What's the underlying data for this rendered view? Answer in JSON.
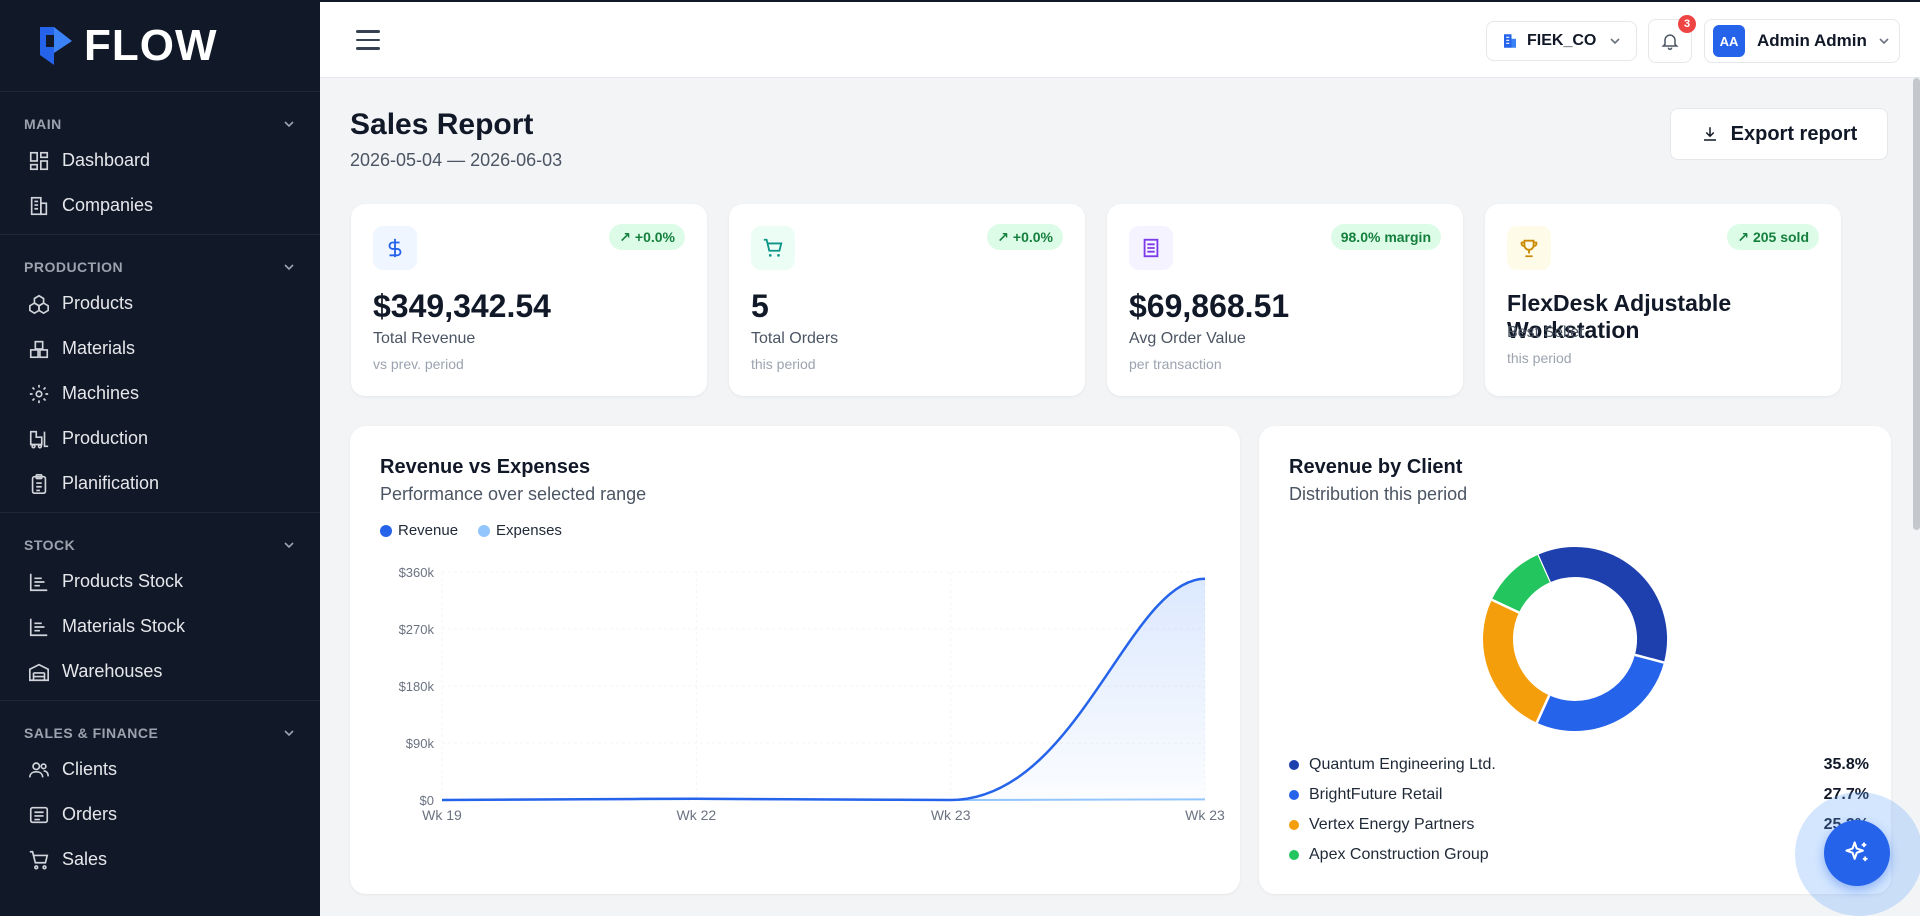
{
  "app": {
    "brand": "FLOW"
  },
  "sidebar": {
    "sections": [
      {
        "title": "MAIN",
        "items": [
          {
            "label": "Dashboard",
            "icon": "dashboard-icon"
          },
          {
            "label": "Companies",
            "icon": "building-icon"
          }
        ]
      },
      {
        "title": "PRODUCTION",
        "items": [
          {
            "label": "Products",
            "icon": "boxes-icon"
          },
          {
            "label": "Materials",
            "icon": "materials-icon"
          },
          {
            "label": "Machines",
            "icon": "gear-icon"
          },
          {
            "label": "Production",
            "icon": "forklift-icon"
          },
          {
            "label": "Planification",
            "icon": "clipboard-icon"
          }
        ]
      },
      {
        "title": "STOCK",
        "items": [
          {
            "label": "Products Stock",
            "icon": "bar-chart-icon"
          },
          {
            "label": "Materials Stock",
            "icon": "bar-chart-icon"
          },
          {
            "label": "Warehouses",
            "icon": "warehouse-icon"
          }
        ]
      },
      {
        "title": "SALES & FINANCE",
        "items": [
          {
            "label": "Clients",
            "icon": "users-icon"
          },
          {
            "label": "Orders",
            "icon": "list-icon"
          },
          {
            "label": "Sales",
            "icon": "cart-icon"
          }
        ]
      }
    ]
  },
  "topbar": {
    "company": "FIEK_CO",
    "notifications": "3",
    "user_initials": "AA",
    "user_name": "Admin Admin"
  },
  "page": {
    "title": "Sales Report",
    "range": "2026-05-04 — 2026-06-03",
    "export_label": "Export report"
  },
  "cards": [
    {
      "value": "$349,342.54",
      "label": "Total Revenue",
      "sub": "vs prev. period",
      "badge": "↗ +0.0%",
      "icon": "dollar-icon",
      "color": "#2563eb",
      "bg": "#eff6ff"
    },
    {
      "value": "5",
      "label": "Total Orders",
      "sub": "this period",
      "badge": "↗ +0.0%",
      "icon": "cart-icon",
      "color": "#0d9488",
      "bg": "#ecfdf5"
    },
    {
      "value": "$69,868.51",
      "label": "Avg Order Value",
      "sub": "per transaction",
      "badge": "98.0% margin",
      "icon": "receipt-icon",
      "color": "#7c3aed",
      "bg": "#f5f3ff"
    },
    {
      "value": "FlexDesk Adjustable Workstation",
      "label": "Best Seller",
      "sub": "this period",
      "badge": "↗ 205 sold",
      "icon": "trophy-icon",
      "color": "#ca8a04",
      "bg": "#fefce8"
    }
  ],
  "revenue_panel": {
    "title": "Revenue vs Expenses",
    "subtitle": "Performance over selected range"
  },
  "client_panel": {
    "title": "Revenue by Client",
    "subtitle": "Distribution this period"
  },
  "chart_data": [
    {
      "type": "area",
      "title": "Revenue vs Expenses",
      "x": [
        "Wk 19",
        "Wk 22",
        "Wk 23",
        "Wk 23"
      ],
      "y_ticks": [
        "$0",
        "$90k",
        "$180k",
        "$270k",
        "$360k"
      ],
      "ylim": [
        0,
        360000
      ],
      "grid": true,
      "legend": "top-left",
      "series": [
        {
          "name": "Revenue",
          "color": "#2563eb",
          "values": [
            0,
            2000,
            0,
            349342
          ]
        },
        {
          "name": "Expenses",
          "color": "#93c5fd",
          "values": [
            0,
            1500,
            0,
            1000
          ]
        }
      ]
    },
    {
      "type": "pie",
      "title": "Revenue by Client",
      "legend": "bottom",
      "slices": [
        {
          "name": "Quantum Engineering Ltd.",
          "value": 35.8,
          "label": "35.8%",
          "color": "#1e40af"
        },
        {
          "name": "BrightFuture Retail",
          "value": 27.7,
          "label": "27.7%",
          "color": "#2563eb"
        },
        {
          "name": "Vertex Energy Partners",
          "value": 25.2,
          "label": "25.2%",
          "color": "#f59e0b"
        },
        {
          "name": "Apex Construction Group",
          "value": 11.3,
          "label": "11.3%",
          "color": "#22c55e"
        }
      ]
    }
  ]
}
